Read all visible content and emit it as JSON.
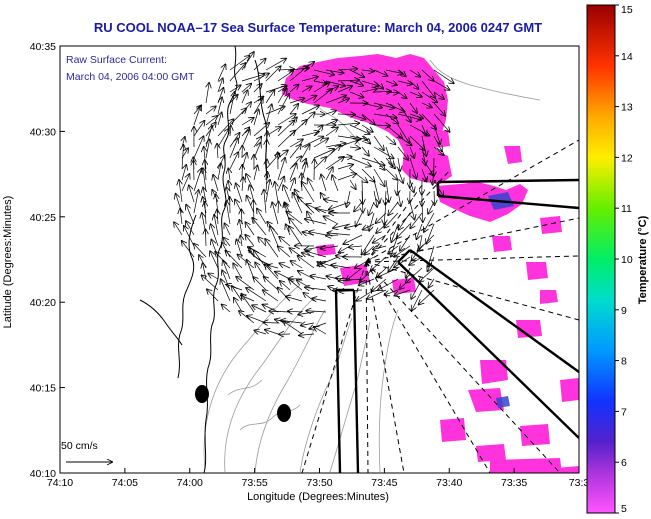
{
  "title": "RU COOL   NOAA–17  Sea Surface Temperature:  March 04, 2006 0247 GMT",
  "annotation": {
    "line1": "Raw Surface Current:",
    "line2": "March 04, 2006 04:00 GMT"
  },
  "axes": {
    "xlabel": "Longitude (Degrees:Minutes)",
    "ylabel": "Latitude (Degrees:Minutes)",
    "xticks": [
      "74:10",
      "74:05",
      "74:00",
      "73:55",
      "73:50",
      "73:45",
      "73:40",
      "73:35",
      "73:3"
    ],
    "yticks": [
      "40:35",
      "40:30",
      "40:25",
      "40:20",
      "40:15",
      "40:10"
    ]
  },
  "scale_arrow": {
    "label": "50 cm/s"
  },
  "colorbar": {
    "label": "Temperature (°C)",
    "ticks": [
      "15",
      "14",
      "13",
      "12",
      "11",
      "10",
      "9",
      "8",
      "7",
      "6",
      "5"
    ],
    "min": 5,
    "max": 15
  },
  "colors": {
    "title": "#1a1aa8",
    "sst_patch": "#ff33dd",
    "sst_cool": "#3344cc",
    "track_lines": "#000000",
    "coast": "#000000",
    "bathymetry": "#9a9a9a"
  }
}
